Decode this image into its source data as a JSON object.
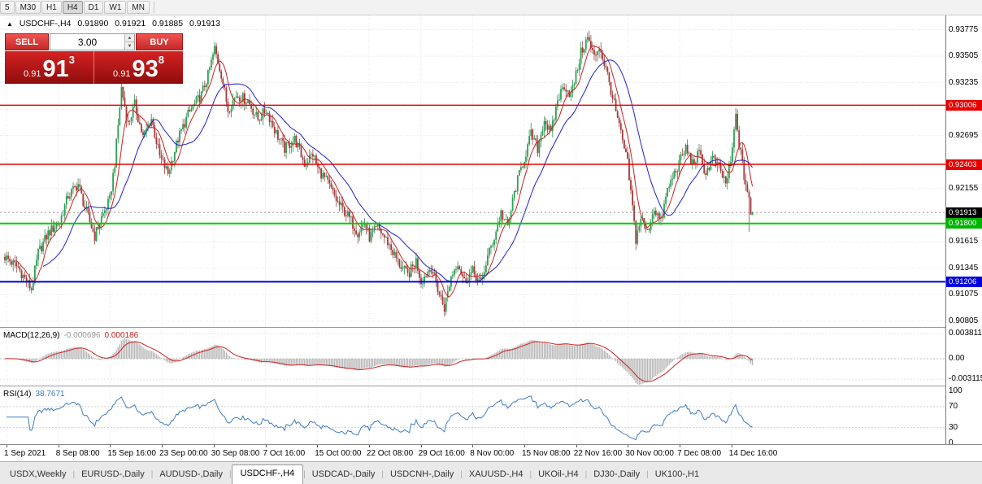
{
  "toolbar": {
    "timeframes": [
      "5",
      "M30",
      "H1",
      "H4",
      "D1",
      "W1",
      "MN"
    ],
    "active": "H4"
  },
  "chart_header": {
    "marker": "▲",
    "symbol": "USDCHF-,H4",
    "open": "0.91890",
    "high": "0.91921",
    "low": "0.91885",
    "close": "0.91913"
  },
  "trade_panel": {
    "sell_label": "SELL",
    "buy_label": "BUY",
    "volume": "3.00",
    "sell_price": {
      "prefix": "0.91",
      "big": "91",
      "pip": "3"
    },
    "buy_price": {
      "prefix": "0.91",
      "big": "93",
      "pip": "8"
    }
  },
  "indicators": {
    "macd": {
      "name": "MACD(12,26,9)",
      "value_main": "-0.000696",
      "value_signal": "0.000186",
      "axis_labels": [
        {
          "text": "0.003811",
          "value": 0.003811
        },
        {
          "text": "0.00",
          "value": 0
        },
        {
          "text": "-0.003115",
          "value": -0.003115
        }
      ]
    },
    "rsi": {
      "name": "RSI(14)",
      "value": "38.7671",
      "axis_labels": [
        {
          "text": "100",
          "value": 100
        },
        {
          "text": "70",
          "value": 70
        },
        {
          "text": "30",
          "value": 30
        },
        {
          "text": "0",
          "value": 0
        }
      ],
      "level_lines": [
        70,
        30
      ]
    }
  },
  "price_axis": {
    "plain_labels": [
      {
        "text": "0.93775",
        "value": 0.93775
      },
      {
        "text": "0.93505",
        "value": 0.93505
      },
      {
        "text": "0.93235",
        "value": 0.93235
      },
      {
        "text": "0.92695",
        "value": 0.92695
      },
      {
        "text": "0.92155",
        "value": 0.92155
      },
      {
        "text": "0.91615",
        "value": 0.91615
      },
      {
        "text": "0.91345",
        "value": 0.91345
      },
      {
        "text": "0.91075",
        "value": 0.91075
      },
      {
        "text": "0.90805",
        "value": 0.90805
      }
    ],
    "grid_prices": [
      0.93775,
      0.93505,
      0.93235,
      0.92965,
      0.92695,
      0.92425,
      0.92155,
      0.91885,
      0.91615,
      0.91345,
      0.91075,
      0.90805
    ],
    "tag_labels": [
      {
        "text": "0.93006",
        "value": 0.93006,
        "color": "#e80000"
      },
      {
        "text": "0.92403",
        "value": 0.92403,
        "color": "#e80000"
      },
      {
        "text": "0.91913",
        "value": 0.91913,
        "color": "#000000"
      },
      {
        "text": "0.91800",
        "value": 0.918,
        "color": "#00b400"
      },
      {
        "text": "0.91206",
        "value": 0.91206,
        "color": "#0000dd"
      }
    ]
  },
  "time_axis": {
    "labels": [
      "1 Sep 2021",
      "8 Sep 08:00",
      "15 Sep 16:00",
      "23 Sep 00:00",
      "30 Sep 08:00",
      "7 Oct 16:00",
      "15 Oct 00:00",
      "22 Oct 08:00",
      "29 Oct 16:00",
      "8 Nov 00:00",
      "15 Nov 08:00",
      "22 Nov 16:00",
      "30 Nov 00:00",
      "7 Dec 08:00",
      "14 Dec 16:00"
    ]
  },
  "tabs": [
    {
      "label": "USDX,Weekly",
      "active": false
    },
    {
      "label": "EURUSD-,Daily",
      "active": false
    },
    {
      "label": "AUDUSD-,Daily",
      "active": false
    },
    {
      "label": "USDCHF-,H4",
      "active": true
    },
    {
      "label": "USDCAD-,Daily",
      "active": false
    },
    {
      "label": "USDCNH-,Daily",
      "active": false
    },
    {
      "label": "XAUUSD-,H4",
      "active": false
    },
    {
      "label": "UKOil-,H4",
      "active": false
    },
    {
      "label": "DJ30-,Daily",
      "active": false
    },
    {
      "label": "UK100-,H1",
      "active": false
    }
  ],
  "chart_data": {
    "type": "candlestick",
    "symbol": "USDCHF-",
    "timeframe": "H4",
    "title": "USDCHF-,H4",
    "y_range": [
      0.90745,
      0.9392
    ],
    "bars": 450,
    "last_candle_ohlc": [
      0.9189,
      0.91921,
      0.91885,
      0.91913
    ],
    "current_price": 0.91913,
    "price_path": [
      [
        0,
        0.9146
      ],
      [
        8,
        0.9135
      ],
      [
        13,
        0.9121
      ],
      [
        16,
        0.9113
      ],
      [
        20,
        0.915
      ],
      [
        26,
        0.917
      ],
      [
        33,
        0.9182
      ],
      [
        38,
        0.9208
      ],
      [
        44,
        0.922
      ],
      [
        48,
        0.9196
      ],
      [
        54,
        0.9167
      ],
      [
        58,
        0.9186
      ],
      [
        63,
        0.9204
      ],
      [
        66,
        0.9242
      ],
      [
        70,
        0.9318
      ],
      [
        74,
        0.9281
      ],
      [
        78,
        0.9301
      ],
      [
        83,
        0.9268
      ],
      [
        88,
        0.9287
      ],
      [
        93,
        0.9248
      ],
      [
        98,
        0.9231
      ],
      [
        104,
        0.9266
      ],
      [
        110,
        0.9291
      ],
      [
        118,
        0.9311
      ],
      [
        122,
        0.9331
      ],
      [
        126,
        0.9358
      ],
      [
        130,
        0.9332
      ],
      [
        134,
        0.9296
      ],
      [
        139,
        0.9311
      ],
      [
        146,
        0.9305
      ],
      [
        152,
        0.9286
      ],
      [
        157,
        0.9296
      ],
      [
        163,
        0.9272
      ],
      [
        168,
        0.9256
      ],
      [
        174,
        0.9266
      ],
      [
        180,
        0.9241
      ],
      [
        185,
        0.9251
      ],
      [
        188,
        0.9236
      ],
      [
        194,
        0.9221
      ],
      [
        200,
        0.9201
      ],
      [
        206,
        0.9188
      ],
      [
        212,
        0.9171
      ],
      [
        216,
        0.9181
      ],
      [
        219,
        0.9166
      ],
      [
        224,
        0.9176
      ],
      [
        230,
        0.9161
      ],
      [
        236,
        0.9141
      ],
      [
        242,
        0.9127
      ],
      [
        247,
        0.9142
      ],
      [
        250,
        0.9121
      ],
      [
        256,
        0.9136
      ],
      [
        261,
        0.9108
      ],
      [
        264,
        0.9094
      ],
      [
        268,
        0.9126
      ],
      [
        272,
        0.9141
      ],
      [
        276,
        0.9121
      ],
      [
        281,
        0.9131
      ],
      [
        286,
        0.9119
      ],
      [
        290,
        0.9146
      ],
      [
        294,
        0.9166
      ],
      [
        298,
        0.9191
      ],
      [
        302,
        0.9176
      ],
      [
        306,
        0.9211
      ],
      [
        310,
        0.9236
      ],
      [
        312,
        0.9246
      ],
      [
        316,
        0.9271
      ],
      [
        320,
        0.9256
      ],
      [
        324,
        0.9286
      ],
      [
        328,
        0.9271
      ],
      [
        332,
        0.9306
      ],
      [
        336,
        0.9321
      ],
      [
        340,
        0.9311
      ],
      [
        343,
        0.9331
      ],
      [
        346,
        0.9354
      ],
      [
        350,
        0.9369
      ],
      [
        354,
        0.9349
      ],
      [
        357,
        0.9361
      ],
      [
        362,
        0.9331
      ],
      [
        366,
        0.9301
      ],
      [
        370,
        0.9271
      ],
      [
        374,
        0.9241
      ],
      [
        377,
        0.9196
      ],
      [
        379,
        0.9164
      ],
      [
        382,
        0.9186
      ],
      [
        386,
        0.9171
      ],
      [
        390,
        0.9196
      ],
      [
        394,
        0.9181
      ],
      [
        398,
        0.9214
      ],
      [
        402,
        0.9231
      ],
      [
        405,
        0.9241
      ],
      [
        409,
        0.9257
      ],
      [
        413,
        0.9241
      ],
      [
        417,
        0.9251
      ],
      [
        421,
        0.9231
      ],
      [
        425,
        0.9246
      ],
      [
        429,
        0.9236
      ],
      [
        433,
        0.9221
      ],
      [
        436,
        0.9241
      ],
      [
        439,
        0.9289
      ],
      [
        441,
        0.9262
      ],
      [
        444,
        0.9228
      ],
      [
        447,
        0.9206
      ],
      [
        449,
        0.9191
      ]
    ],
    "horizontal_lines": [
      {
        "price": 0.93006,
        "color": "#e80000",
        "width": 1.4
      },
      {
        "price": 0.92403,
        "color": "#e80000",
        "width": 1.4
      },
      {
        "price": 0.918,
        "color": "#00cc00",
        "width": 2
      },
      {
        "price": 0.91206,
        "color": "#0000dd",
        "width": 2
      }
    ],
    "moving_averages": [
      {
        "period": 8,
        "color": "#cc2020"
      },
      {
        "period": 24,
        "color": "#2020cc"
      }
    ],
    "candle_colors": {
      "up": "#2aa352",
      "down": "#a83838",
      "up_wick": "#1d7a3c",
      "down_wick": "#8c2f2f"
    },
    "macd": {
      "fast": 12,
      "slow": 26,
      "signal": 9,
      "histogram_color": "#b8b8b8",
      "signal_color": "#d02020"
    },
    "rsi": {
      "period": 14,
      "color": "#3f7cbf"
    }
  }
}
